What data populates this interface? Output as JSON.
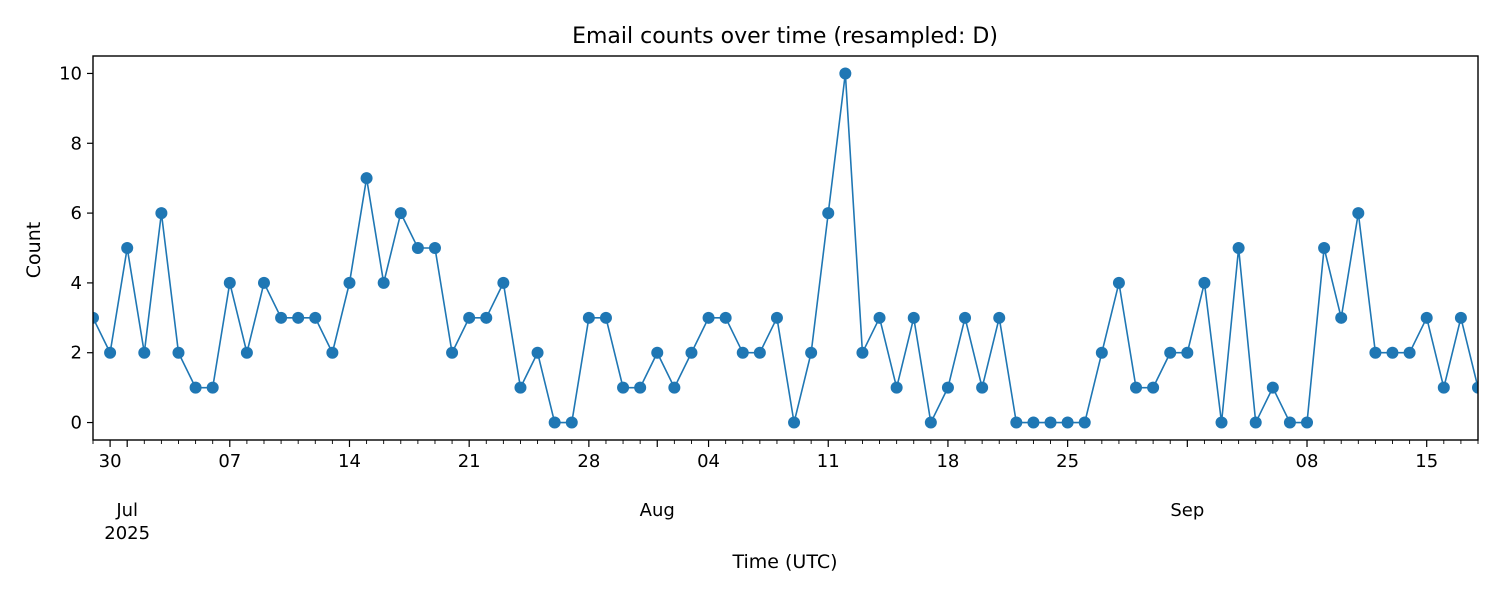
{
  "chart_data": {
    "type": "line",
    "title": "Email counts over time (resampled: D)",
    "xlabel": "Time (UTC)",
    "ylabel": "Count",
    "x_start": "2025-06-29",
    "x_end": "2025-09-18",
    "ylim": [
      -0.5,
      10.5
    ],
    "yticks": [
      0,
      2,
      4,
      6,
      8,
      10
    ],
    "grid": false,
    "legend": "none",
    "color": "#1f77b4",
    "xticks": [
      {
        "date": "2025-06-30",
        "label": "30"
      },
      {
        "date": "2025-07-07",
        "label": "07"
      },
      {
        "date": "2025-07-14",
        "label": "14"
      },
      {
        "date": "2025-07-21",
        "label": "21"
      },
      {
        "date": "2025-07-28",
        "label": "28"
      },
      {
        "date": "2025-08-04",
        "label": "04"
      },
      {
        "date": "2025-08-11",
        "label": "11"
      },
      {
        "date": "2025-08-18",
        "label": "18"
      },
      {
        "date": "2025-08-25",
        "label": "25"
      },
      {
        "date": "2025-09-08",
        "label": "08"
      },
      {
        "date": "2025-09-15",
        "label": "15"
      }
    ],
    "month_labels": [
      {
        "date": "2025-07-01",
        "label": "Jul",
        "year": "2025"
      },
      {
        "date": "2025-08-01",
        "label": "Aug",
        "year": ""
      },
      {
        "date": "2025-09-01",
        "label": "Sep",
        "year": ""
      }
    ],
    "series": [
      {
        "x": [
          "2025-06-29",
          "2025-06-30",
          "2025-07-01",
          "2025-07-02",
          "2025-07-03",
          "2025-07-04",
          "2025-07-05",
          "2025-07-06",
          "2025-07-07",
          "2025-07-08",
          "2025-07-09",
          "2025-07-10",
          "2025-07-11",
          "2025-07-12",
          "2025-07-13",
          "2025-07-14",
          "2025-07-15",
          "2025-07-16",
          "2025-07-17",
          "2025-07-18",
          "2025-07-19",
          "2025-07-20",
          "2025-07-21",
          "2025-07-22",
          "2025-07-23",
          "2025-07-24",
          "2025-07-25",
          "2025-07-26",
          "2025-07-27",
          "2025-07-28",
          "2025-07-29",
          "2025-07-30",
          "2025-07-31",
          "2025-08-01",
          "2025-08-02",
          "2025-08-03",
          "2025-08-04",
          "2025-08-05",
          "2025-08-06",
          "2025-08-07",
          "2025-08-08",
          "2025-08-09",
          "2025-08-10",
          "2025-08-11",
          "2025-08-12",
          "2025-08-13",
          "2025-08-14",
          "2025-08-15",
          "2025-08-16",
          "2025-08-17",
          "2025-08-18",
          "2025-08-19",
          "2025-08-20",
          "2025-08-21",
          "2025-08-22",
          "2025-08-23",
          "2025-08-24",
          "2025-08-25",
          "2025-08-26",
          "2025-08-27",
          "2025-08-28",
          "2025-08-29",
          "2025-08-30",
          "2025-08-31",
          "2025-09-01",
          "2025-09-02",
          "2025-09-03",
          "2025-09-04",
          "2025-09-05",
          "2025-09-06",
          "2025-09-07",
          "2025-09-08",
          "2025-09-09",
          "2025-09-10",
          "2025-09-11",
          "2025-09-12",
          "2025-09-13",
          "2025-09-14",
          "2025-09-15",
          "2025-09-16",
          "2025-09-17",
          "2025-09-18"
        ],
        "values": [
          3,
          2,
          5,
          2,
          6,
          2,
          1,
          1,
          4,
          2,
          4,
          3,
          3,
          3,
          2,
          4,
          7,
          4,
          6,
          5,
          5,
          2,
          3,
          3,
          4,
          1,
          2,
          0,
          0,
          3,
          3,
          1,
          1,
          2,
          1,
          2,
          3,
          3,
          2,
          2,
          3,
          0,
          2,
          6,
          10,
          2,
          3,
          1,
          3,
          0,
          1,
          3,
          1,
          3,
          0,
          0,
          0,
          0,
          0,
          2,
          4,
          1,
          1,
          2,
          2,
          4,
          0,
          5,
          0,
          1,
          0,
          0,
          5,
          3,
          6,
          2,
          2,
          2,
          3,
          1,
          3,
          1
        ]
      }
    ]
  }
}
